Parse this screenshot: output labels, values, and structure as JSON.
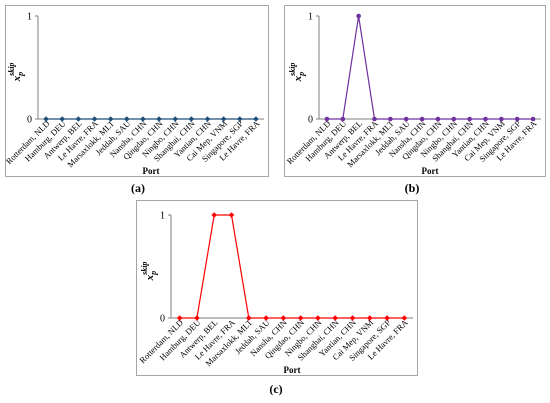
{
  "chart_data": [
    {
      "type": "line",
      "panel_label": "(a)",
      "categories": [
        "Rotterdam, NLD",
        "Hamburg, DEU",
        "Antwerp, BEL",
        "Le Havre, FRA",
        "Marsaxlokk, MLT",
        "Jeddah, SAU",
        "Nansha, CHN",
        "Qingdao, CHN",
        "Ningbo, CHN",
        "Shanghai, CHN",
        "Yantian, CHN",
        "Cai Mep, VNM",
        "Singapore, SGP",
        "Le Havre, FRA"
      ],
      "values": [
        0,
        0,
        0,
        0,
        0,
        0,
        0,
        0,
        0,
        0,
        0,
        0,
        0,
        0
      ],
      "xlabel": "Port",
      "ylabel_base": "x",
      "ylabel_sub": "p",
      "ylabel_sup": "skip",
      "yticks": [
        "0",
        "1"
      ],
      "ylim": [
        0,
        1
      ],
      "color": "#1f4e79",
      "marker": "diamond"
    },
    {
      "type": "line",
      "panel_label": "(b)",
      "categories": [
        "Rotterdam, NLD",
        "Hamburg, DEU",
        "Antwerp, BEL",
        "Le Havre, FRA",
        "Marsaxlokk, MLT",
        "Jeddah, SAU",
        "Nansha, CHN",
        "Qingdao, CHN",
        "Ningbo, CHN",
        "Shanghai, CHN",
        "Yantian, CHN",
        "Cai Mep, VNM",
        "Singapore, SGP",
        "Le Havre, FRA"
      ],
      "values": [
        0,
        0,
        1,
        0,
        0,
        0,
        0,
        0,
        0,
        0,
        0,
        0,
        0,
        0
      ],
      "xlabel": "Port",
      "ylabel_base": "x",
      "ylabel_sub": "p",
      "ylabel_sup": "skip",
      "yticks": [
        "0",
        "1"
      ],
      "ylim": [
        0,
        1
      ],
      "color": "#7030a0",
      "marker": "circle"
    },
    {
      "type": "line",
      "panel_label": "(c)",
      "categories": [
        "Rotterdam, NLD",
        "Hamburg, DEU",
        "Antwerp, BEL",
        "Le Havre, FRA",
        "Marsaxlokk, MLT",
        "Jeddah, SAU",
        "Nansha, CHN",
        "Qingdao, CHN",
        "Ningbo, CHN",
        "Shanghai, CHN",
        "Yantian, CHN",
        "Cai Mep, VNM",
        "Singapore, SGP",
        "Le Havre, FRA"
      ],
      "values": [
        0,
        0,
        1,
        1,
        0,
        0,
        0,
        0,
        0,
        0,
        0,
        0,
        0,
        0
      ],
      "xlabel": "Port",
      "ylabel_base": "x",
      "ylabel_sub": "p",
      "ylabel_sup": "skip",
      "yticks": [
        "0",
        "1"
      ],
      "ylim": [
        0,
        1
      ],
      "color": "#ff0000",
      "marker": "diamond"
    }
  ]
}
